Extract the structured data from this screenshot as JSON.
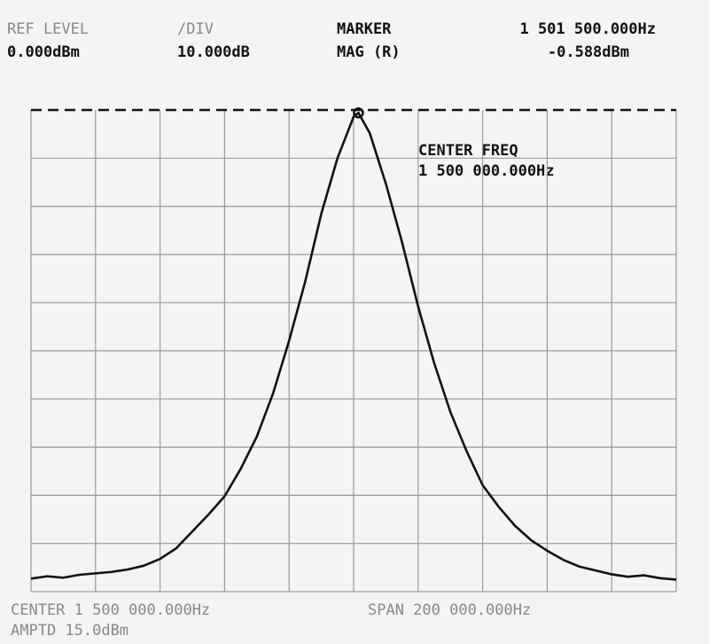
{
  "chart_data": {
    "type": "line",
    "header": {
      "ref_level_label": "REF LEVEL",
      "ref_level": "0.000dBm",
      "div_label": "/DIV",
      "div": "10.000dB",
      "marker_label": "MARKER",
      "mag_label": "MAG (R)",
      "center_freq_label": "CENTER FREQ",
      "center_freq": "1 500 000.000Hz",
      "center": "CENTER 1 500 000.000Hz",
      "span": "SPAN 200 000.000Hz",
      "amptd": "AMPTD 15.0dBm"
    },
    "marker": {
      "x": 1501500,
      "y": -0.588,
      "x_label": "1 501 500.000Hz",
      "y_label": "-0.588dBm"
    },
    "x": [
      1400000,
      1405000,
      1410000,
      1415000,
      1420000,
      1425000,
      1430000,
      1435000,
      1440000,
      1445000,
      1450000,
      1455000,
      1460000,
      1465000,
      1470000,
      1475000,
      1480000,
      1485000,
      1490000,
      1495000,
      1500000,
      1501500,
      1505000,
      1510000,
      1515000,
      1520000,
      1525000,
      1530000,
      1535000,
      1540000,
      1545000,
      1550000,
      1555000,
      1560000,
      1565000,
      1570000,
      1575000,
      1580000,
      1585000,
      1590000,
      1595000,
      1600000
    ],
    "values": [
      -97.3,
      -96.8,
      -97.1,
      -96.5,
      -96.2,
      -95.9,
      -95.4,
      -94.6,
      -93.2,
      -91.0,
      -87.5,
      -84,
      -80.2,
      -74.5,
      -67.8,
      -58.9,
      -47.9,
      -35.6,
      -21.5,
      -10,
      -1.4,
      -0.588,
      -4.8,
      -15.3,
      -27.4,
      -40.8,
      -52.6,
      -62.7,
      -70.8,
      -77.9,
      -82.4,
      -86.3,
      -89.3,
      -91.5,
      -93.4,
      -94.8,
      -95.6,
      -96.4,
      -96.9,
      -96.6,
      -97.2,
      -97.5
    ],
    "color": "#111111",
    "xlim": [
      1400000,
      1600000
    ],
    "ylim": [
      -100,
      0
    ],
    "xticks": [
      1400000,
      1420000,
      1440000,
      1460000,
      1480000,
      1500000,
      1520000,
      1540000,
      1560000,
      1580000,
      1600000
    ],
    "yticks": [
      0,
      -10,
      -20,
      -30,
      -40,
      -50,
      -60,
      -70,
      -80,
      -90,
      -100
    ],
    "grid": true
  }
}
